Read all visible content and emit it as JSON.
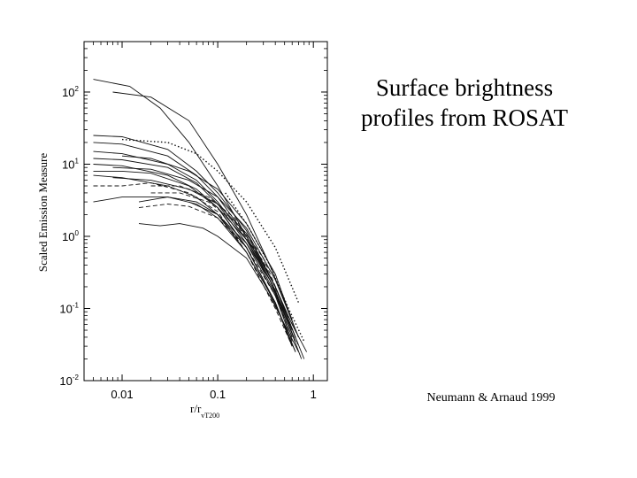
{
  "slide": {
    "title_line1": "Surface brightness",
    "title_line2": "profiles from ROSAT",
    "citation": "Neumann & Arnaud 1999"
  },
  "chart_data": {
    "type": "line",
    "title": "",
    "ylabel": "Scaled Emission Measure",
    "xlabel_main": "r/r",
    "xlabel_sub": "vT200",
    "xscale": "log",
    "yscale": "log",
    "xlim": [
      0.004,
      1.4
    ],
    "ylim": [
      0.01,
      500
    ],
    "grid": false,
    "legend": "none",
    "x_ticks": [
      {
        "value": 0.01,
        "label": "0.01"
      },
      {
        "value": 0.1,
        "label": "0.1"
      },
      {
        "value": 1,
        "label": "1"
      }
    ],
    "y_ticks": [
      {
        "value": 100,
        "base": "10",
        "exp": "2"
      },
      {
        "value": 10,
        "base": "10",
        "exp": "1"
      },
      {
        "value": 1,
        "base": "10",
        "exp": "0"
      },
      {
        "value": 0.1,
        "base": "10",
        "exp": "-1"
      },
      {
        "value": 0.01,
        "base": "10",
        "exp": "-2"
      }
    ],
    "series": [
      {
        "style": "solid",
        "x": [
          0.005,
          0.012,
          0.025,
          0.05,
          0.1,
          0.2,
          0.35,
          0.6
        ],
        "y": [
          150,
          120,
          60,
          20,
          5,
          1.0,
          0.25,
          0.05
        ]
      },
      {
        "style": "solid",
        "x": [
          0.008,
          0.02,
          0.05,
          0.1,
          0.2,
          0.35,
          0.6
        ],
        "y": [
          100,
          85,
          40,
          10,
          2,
          0.4,
          0.07
        ]
      },
      {
        "style": "solid",
        "x": [
          0.005,
          0.01,
          0.03,
          0.06,
          0.1,
          0.2,
          0.4,
          0.65
        ],
        "y": [
          25,
          24,
          16,
          8,
          4,
          1.2,
          0.2,
          0.04
        ]
      },
      {
        "style": "solid",
        "x": [
          0.005,
          0.01,
          0.03,
          0.06,
          0.1,
          0.2,
          0.4,
          0.65
        ],
        "y": [
          20,
          19,
          13,
          7,
          3.5,
          1.0,
          0.18,
          0.035
        ]
      },
      {
        "style": "dotted",
        "x": [
          0.01,
          0.03,
          0.06,
          0.1,
          0.2,
          0.4,
          0.7
        ],
        "y": [
          22,
          20,
          14,
          8,
          3,
          0.7,
          0.12
        ]
      },
      {
        "style": "solid",
        "x": [
          0.005,
          0.01,
          0.03,
          0.06,
          0.1,
          0.2,
          0.4,
          0.6
        ],
        "y": [
          15,
          14,
          10,
          6,
          3,
          0.9,
          0.16,
          0.04
        ]
      },
      {
        "style": "solid",
        "x": [
          0.005,
          0.01,
          0.03,
          0.06,
          0.1,
          0.2,
          0.4,
          0.6
        ],
        "y": [
          12,
          11.5,
          9,
          5.5,
          2.8,
          0.8,
          0.15,
          0.035
        ]
      },
      {
        "style": "solid",
        "x": [
          0.01,
          0.02,
          0.05,
          0.1,
          0.2,
          0.4,
          0.65
        ],
        "y": [
          13,
          12,
          8,
          4.5,
          1.5,
          0.3,
          0.05
        ]
      },
      {
        "style": "solid",
        "x": [
          0.005,
          0.01,
          0.03,
          0.06,
          0.1,
          0.2,
          0.4,
          0.6
        ],
        "y": [
          10,
          9.5,
          7,
          4.5,
          2.5,
          0.7,
          0.12,
          0.03
        ]
      },
      {
        "style": "solid",
        "x": [
          0.008,
          0.02,
          0.05,
          0.1,
          0.2,
          0.4,
          0.7
        ],
        "y": [
          9,
          8.5,
          6,
          3.5,
          1.3,
          0.25,
          0.04
        ]
      },
      {
        "style": "solid",
        "x": [
          0.005,
          0.01,
          0.02,
          0.05,
          0.1,
          0.2,
          0.4,
          0.6
        ],
        "y": [
          8,
          8,
          7.5,
          5,
          2.5,
          0.7,
          0.12,
          0.03
        ]
      },
      {
        "style": "solid",
        "x": [
          0.005,
          0.01,
          0.03,
          0.06,
          0.1,
          0.2,
          0.4,
          0.6
        ],
        "y": [
          7,
          6.5,
          5,
          3.5,
          2,
          0.6,
          0.12,
          0.03
        ]
      },
      {
        "style": "solid",
        "x": [
          0.008,
          0.02,
          0.05,
          0.1,
          0.2,
          0.4,
          0.65
        ],
        "y": [
          6.5,
          6,
          4.5,
          2.8,
          1.1,
          0.2,
          0.04
        ]
      },
      {
        "style": "dashed",
        "x": [
          0.005,
          0.01,
          0.02,
          0.05,
          0.1,
          0.2,
          0.4,
          0.6
        ],
        "y": [
          5,
          5,
          5.5,
          4,
          2.2,
          0.6,
          0.1,
          0.03
        ]
      },
      {
        "style": "solid",
        "x": [
          0.005,
          0.01,
          0.03,
          0.06,
          0.1,
          0.2,
          0.4,
          0.65
        ],
        "y": [
          3,
          3.5,
          3.5,
          3,
          2,
          0.7,
          0.12,
          0.025
        ]
      },
      {
        "style": "dashed",
        "x": [
          0.02,
          0.04,
          0.08,
          0.15,
          0.3,
          0.5,
          0.7
        ],
        "y": [
          5,
          5,
          3.5,
          1.8,
          0.5,
          0.1,
          0.04
        ]
      },
      {
        "style": "solid",
        "x": [
          0.015,
          0.03,
          0.06,
          0.1,
          0.2,
          0.4,
          0.6
        ],
        "y": [
          3,
          3.5,
          2.8,
          1.8,
          0.6,
          0.12,
          0.03
        ]
      },
      {
        "style": "dashed",
        "x": [
          0.02,
          0.04,
          0.08,
          0.15,
          0.3,
          0.5,
          0.7
        ],
        "y": [
          4,
          4,
          3,
          1.6,
          0.45,
          0.1,
          0.03
        ]
      },
      {
        "style": "solid",
        "x": [
          0.05,
          0.1,
          0.2,
          0.35,
          0.55,
          0.8
        ],
        "y": [
          3,
          2,
          0.8,
          0.25,
          0.07,
          0.02
        ]
      },
      {
        "style": "dashed",
        "x": [
          0.015,
          0.03,
          0.05,
          0.1,
          0.2,
          0.4,
          0.6
        ],
        "y": [
          2.5,
          2.8,
          2.6,
          1.8,
          0.7,
          0.15,
          0.04
        ]
      },
      {
        "style": "solid",
        "x": [
          0.015,
          0.025,
          0.04,
          0.07,
          0.1,
          0.2,
          0.35,
          0.5,
          0.7
        ],
        "y": [
          1.5,
          1.4,
          1.5,
          1.3,
          1.0,
          0.5,
          0.15,
          0.06,
          0.025
        ]
      },
      {
        "style": "dotted",
        "x": [
          0.12,
          0.2,
          0.35,
          0.55,
          0.8
        ],
        "y": [
          4,
          1.5,
          0.4,
          0.1,
          0.035
        ]
      },
      {
        "style": "solid",
        "x": [
          0.1,
          0.2,
          0.35,
          0.55,
          0.75
        ],
        "y": [
          2.5,
          0.9,
          0.25,
          0.06,
          0.02
        ]
      },
      {
        "style": "solid",
        "x": [
          0.15,
          0.25,
          0.4,
          0.6,
          0.85
        ],
        "y": [
          1.5,
          0.6,
          0.2,
          0.06,
          0.025
        ]
      },
      {
        "style": "solid",
        "x": [
          0.12,
          0.2,
          0.3,
          0.45,
          0.65
        ],
        "y": [
          1.8,
          0.7,
          0.25,
          0.08,
          0.025
        ]
      }
    ]
  }
}
